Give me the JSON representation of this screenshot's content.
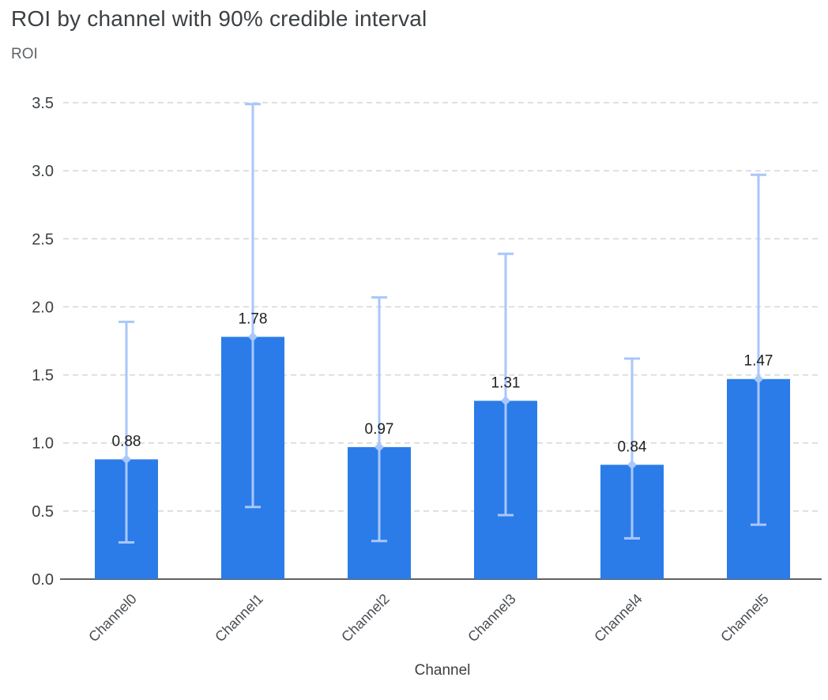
{
  "chart_data": {
    "type": "bar",
    "title": "ROI by channel with 90% credible interval",
    "ylabel": "ROI",
    "xlabel": "Channel",
    "categories": [
      "Channel0",
      "Channel1",
      "Channel2",
      "Channel3",
      "Channel4",
      "Channel5"
    ],
    "values": [
      0.88,
      1.78,
      0.97,
      1.31,
      0.84,
      1.47
    ],
    "value_labels": [
      "0.88",
      "1.78",
      "0.97",
      "1.31",
      "0.84",
      "1.47"
    ],
    "error_low": [
      0.27,
      0.53,
      0.28,
      0.47,
      0.3,
      0.4
    ],
    "error_high": [
      1.89,
      3.49,
      2.07,
      2.39,
      1.62,
      2.97
    ],
    "error_interval": "90% credible interval",
    "ylim": [
      0,
      3.5
    ],
    "yticks": [
      0,
      0.5,
      1,
      1.5,
      2,
      2.5,
      3,
      3.5
    ],
    "ytick_labels": [
      "0.0",
      "0.5",
      "1.0",
      "1.5",
      "2.0",
      "2.5",
      "3.0",
      "3.5"
    ],
    "grid": true,
    "grid_style": "dashed-horizontal",
    "legend": "none",
    "colors": {
      "bar": "#2B7CE9",
      "error_bar": "#A8C7FA",
      "grid": "#D5D5D5",
      "axis": "#616161",
      "title": "#3C4043",
      "tick": "#3C4043",
      "category": "#4A4E54",
      "value_label": "#212121"
    }
  }
}
